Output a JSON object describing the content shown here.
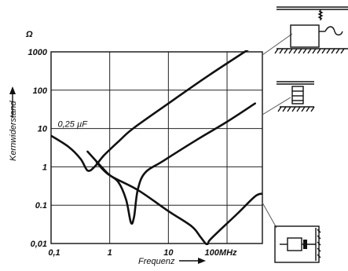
{
  "chart_data": {
    "type": "line",
    "unit_label": "Ω",
    "ylabel": "Kernwiderstand",
    "xlabel": "Frequenz",
    "x_scale": "log",
    "y_scale": "log",
    "xlim": [
      0.1,
      400
    ],
    "ylim": [
      0.01,
      1000
    ],
    "x_ticks": [
      {
        "value": 0.1,
        "label": "0,1"
      },
      {
        "value": 1,
        "label": "1"
      },
      {
        "value": 10,
        "label": "10"
      },
      {
        "value": 100,
        "label": "100MHz"
      }
    ],
    "y_ticks": [
      {
        "value": 1000,
        "label": "1000"
      },
      {
        "value": 100,
        "label": "100"
      },
      {
        "value": 10,
        "label": "10"
      },
      {
        "value": 1,
        "label": "1"
      },
      {
        "value": 0.1,
        "label": "0.1"
      },
      {
        "value": 0.01,
        "label": "0,01"
      }
    ],
    "grid": true,
    "annotations": [
      {
        "text": "0,25 µF",
        "x": 0.13,
        "y": 11
      }
    ],
    "series": [
      {
        "id": "capacitor-block",
        "points": [
          [
            0.1,
            6.5
          ],
          [
            0.2,
            3.3
          ],
          [
            0.32,
            1.6
          ],
          [
            0.42,
            0.8
          ],
          [
            0.55,
            1.0
          ],
          [
            0.8,
            2.0
          ],
          [
            1.5,
            5.0
          ],
          [
            2.5,
            10
          ],
          [
            10,
            45
          ],
          [
            50,
            250
          ],
          [
            400,
            2000
          ]
        ]
      },
      {
        "id": "feed-through-coil",
        "points": [
          [
            0.42,
            2.5
          ],
          [
            0.9,
            0.7
          ],
          [
            1.4,
            0.4
          ],
          [
            1.9,
            0.14
          ],
          [
            2.3,
            0.035
          ],
          [
            2.6,
            0.05
          ],
          [
            3.0,
            0.25
          ],
          [
            4.0,
            0.7
          ],
          [
            8,
            1.4
          ],
          [
            30,
            5
          ],
          [
            100,
            15
          ],
          [
            300,
            45
          ]
        ]
      },
      {
        "id": "feed-through-capacitor",
        "points": [
          [
            0.6,
            1.3
          ],
          [
            1,
            0.6
          ],
          [
            3,
            0.25
          ],
          [
            10,
            0.07
          ],
          [
            25,
            0.028
          ],
          [
            35,
            0.015
          ],
          [
            45,
            0.0095
          ],
          [
            50,
            0.012
          ],
          [
            70,
            0.02
          ],
          [
            150,
            0.06
          ],
          [
            300,
            0.17
          ],
          [
            400,
            0.2
          ]
        ]
      }
    ]
  }
}
